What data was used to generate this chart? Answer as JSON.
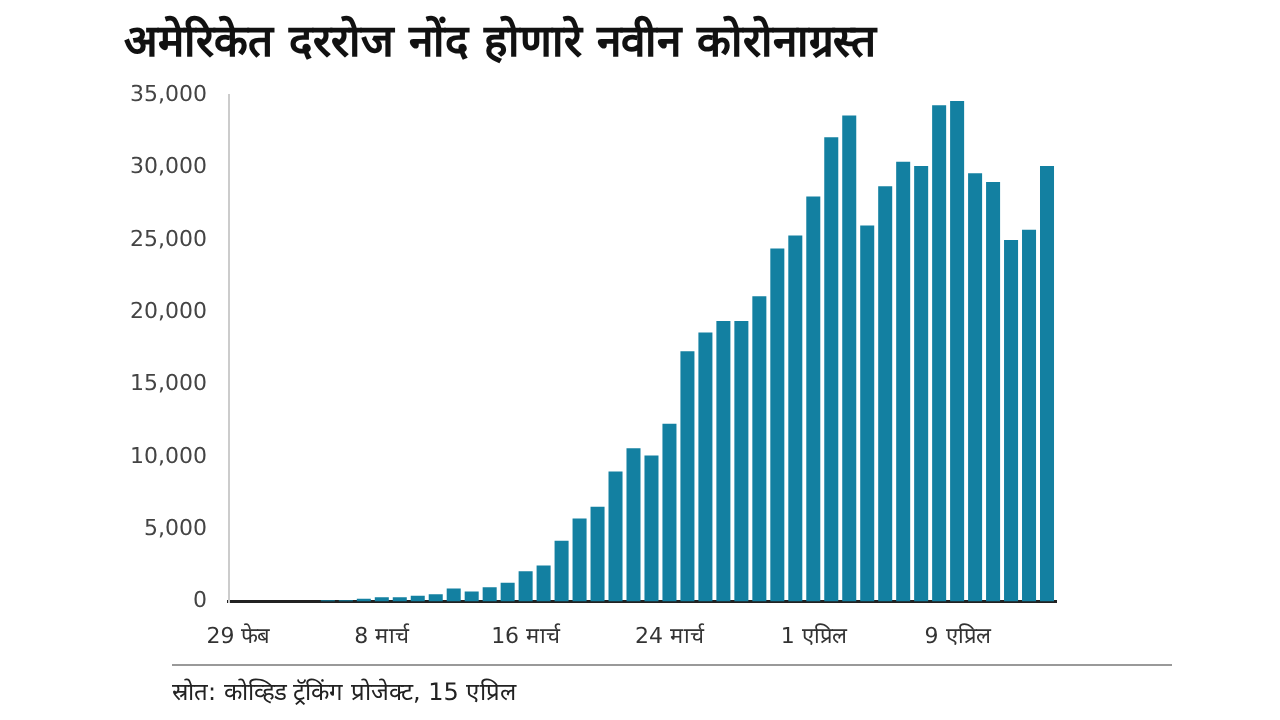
{
  "chart_data": {
    "type": "bar",
    "title": "अमेरिकेत दररोज नोंद होणारे नवीन कोरोनाग्रस्त",
    "categories": [
      "29 फेब",
      null,
      null,
      null,
      null,
      null,
      null,
      null,
      "8 मार्च",
      null,
      null,
      null,
      null,
      null,
      null,
      null,
      "16 मार्च",
      null,
      null,
      null,
      null,
      null,
      null,
      null,
      "24 मार्च",
      null,
      null,
      null,
      null,
      null,
      null,
      null,
      "1 एप्रिल",
      null,
      null,
      null,
      null,
      null,
      null,
      null,
      "9 एप्रिल",
      null,
      null,
      null,
      null,
      null
    ],
    "values": [
      null,
      null,
      null,
      null,
      null,
      100,
      100,
      200,
      300,
      300,
      400,
      500,
      900,
      700,
      1000,
      1300,
      2100,
      2500,
      4200,
      5750,
      6550,
      9000,
      10600,
      10100,
      12300,
      17300,
      18600,
      19400,
      19400,
      21100,
      24400,
      25300,
      28000,
      32100,
      33600,
      26000,
      28700,
      30400,
      30100,
      34300,
      34600,
      29600,
      29000,
      25000,
      25700,
      30100
    ],
    "color": "#1380a1",
    "ylim": [
      0,
      35000
    ],
    "yticks": [
      {
        "value": 0,
        "label": "0"
      },
      {
        "value": 5000,
        "label": "5,000"
      },
      {
        "value": 10000,
        "label": "10,000"
      },
      {
        "value": 15000,
        "label": "15,000"
      },
      {
        "value": 20000,
        "label": "20,000"
      },
      {
        "value": 25000,
        "label": "25,000"
      },
      {
        "value": 30000,
        "label": "30,000"
      },
      {
        "value": 35000,
        "label": "35,000"
      }
    ],
    "annotations": [
      "स्रोत: कोव्हिड ट्रॅकिंग प्रोजेक्ट, 15 एप्रिल"
    ]
  }
}
